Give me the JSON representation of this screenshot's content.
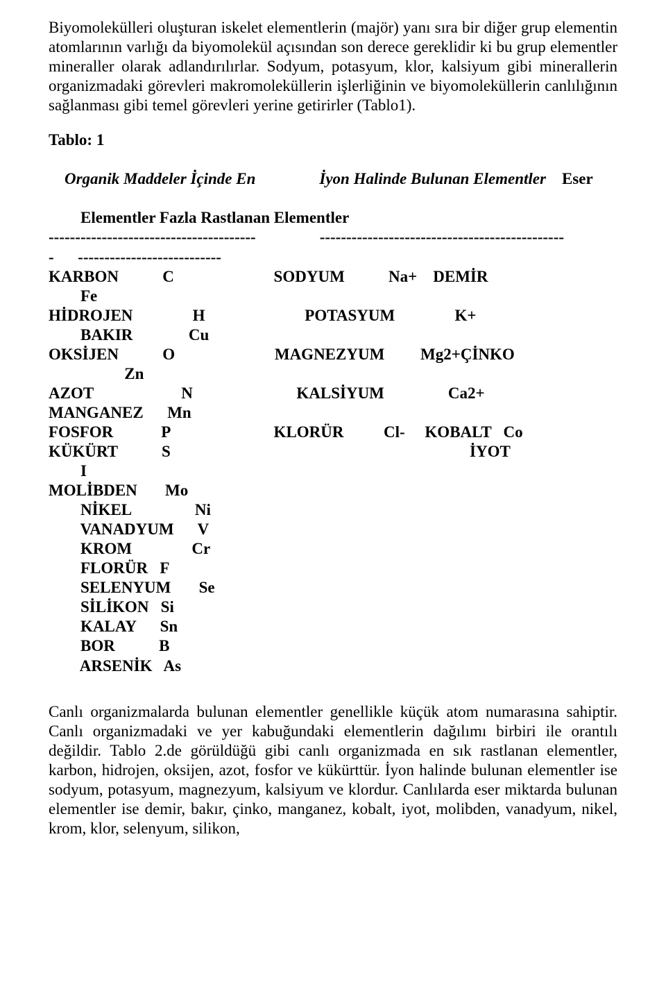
{
  "para1": "Biyomolekülleri oluşturan iskelet elementlerin (majör) yanı sıra bir diğer grup elementin atomlarının varlığı da biyomolekül açısından son derece gereklidir ki bu grup elementler mineraller olarak adlandırılırlar. Sodyum, potasyum, klor, kalsiyum gibi minerallerin organizmadaki görevleri makromoleküllerin işlerliğinin ve biyomoleküllerin canlılığının sağlanması gibi temel görevleri yerine getirirler (Tablo1).",
  "table": {
    "title": "Tablo: 1",
    "heading1_italic": "Organik Maddeler İçinde En",
    "heading1_italic2": "İyon Halinde Bulunan Elementler",
    "heading1_plain": "Eser",
    "heading2": "Elementler Fazla Rastlanan Elementler",
    "dash1": "---------------------------------------                ----------------------------------------------",
    "dash2": "-      ---------------------------",
    "rows": [
      "KARBON           C                         SODYUM           Na+    DEMİR",
      "        Fe",
      "HİDROJEN               H                         POTASYUM               K+",
      "        BAKIR              Cu",
      "OKSİJEN           O                         MAGNEZYUM         Mg2+ÇİNKO",
      "                   Zn",
      "AZOT                      N                          KALSİYUM                Ca2+",
      "MANGANEZ      Mn",
      "FOSFOR            P                          KLORÜR          Cl-     KOBALT   Co",
      "KÜKÜRT           S                                                                           İYOT",
      "        I",
      "MOLİBDEN       Mo",
      "        NİKEL                Ni",
      "        VANADYUM      V",
      "        KROM               Cr",
      "        FLORÜR   F",
      "        SELENYUM       Se",
      "        SİLİKON   Si",
      "        KALAY      Sn",
      "        BOR           B",
      "        ARSENİK   As"
    ]
  },
  "para2": "Canlı organizmalarda bulunan elementler genellikle küçük atom numarasına sahiptir. Canlı organizmadaki ve yer kabuğundaki elementlerin dağılımı birbiri ile orantılı değildir. Tablo 2.de görüldüğü gibi canlı organizmada en sık rastlanan elementler, karbon, hidrojen, oksijen, azot, fosfor ve kükürttür. İyon halinde bulunan elementler ise sodyum, potasyum, magnezyum, kalsiyum ve klordur. Canlılarda eser miktarda bulunan elementler ise demir, bakır, çinko, manganez, kobalt, iyot, molibden, vanadyum, nikel, krom, klor, selenyum, silikon,"
}
